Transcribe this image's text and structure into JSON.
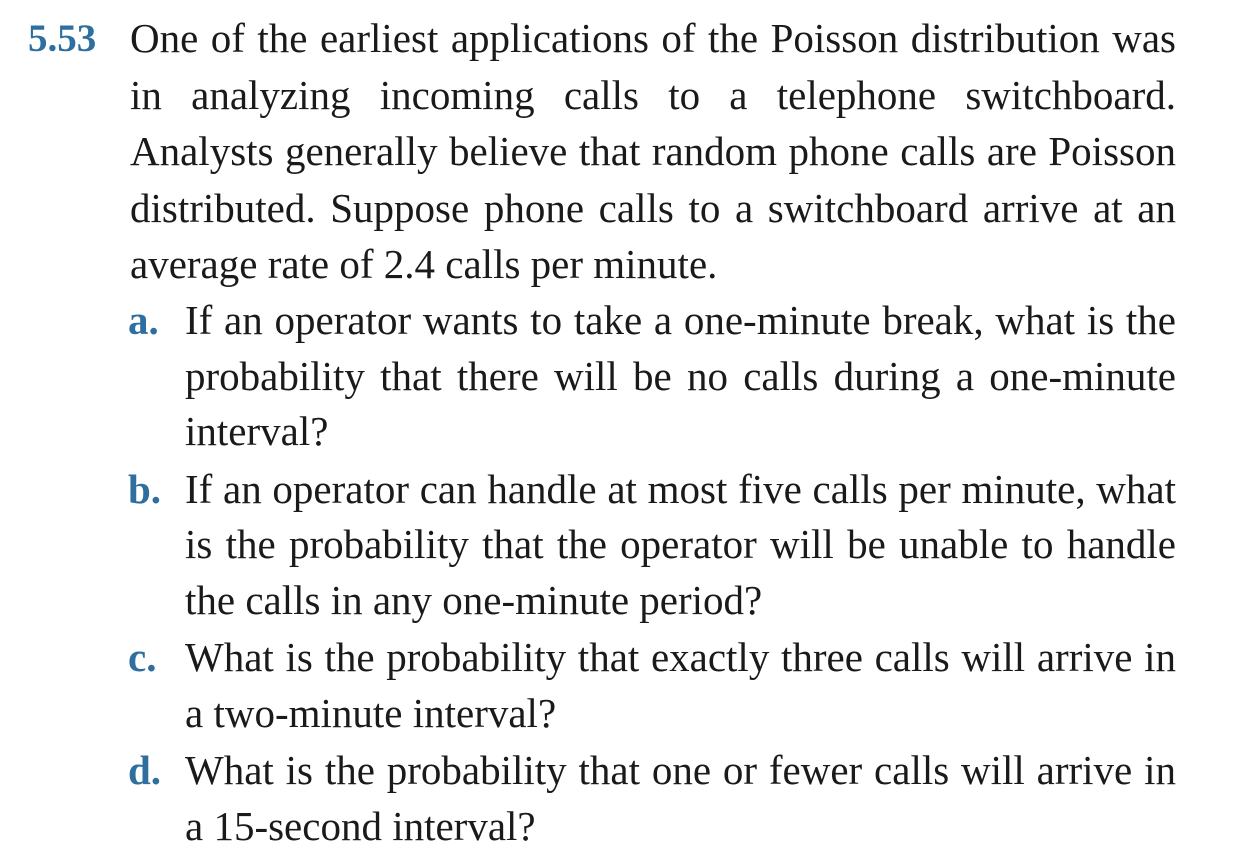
{
  "problem": {
    "number": "5.53",
    "text": "One of the earliest applications of the Poisson distribution was in analyzing incoming calls to a telephone switch­board. Analysts generally believe that random phone calls are Poisson distributed. Suppose phone calls to a switch­board arrive at an average rate of 2.4 calls per minute.",
    "parts": [
      {
        "letter": "a.",
        "text": "If an operator wants to take a one-minute break, what is the probability that there will be no calls during a one-minute interval?"
      },
      {
        "letter": "b.",
        "text": "If an operator can handle at most five calls per minute, what is the probability that the operator will be unable to handle the calls in any one-minute period?"
      },
      {
        "letter": "c.",
        "text": "What is the probability that exactly three calls will arrive in a two-minute interval?"
      },
      {
        "letter": "d.",
        "text": "What is the probability that one or fewer calls will arrive in a 15-second interval?"
      }
    ]
  }
}
